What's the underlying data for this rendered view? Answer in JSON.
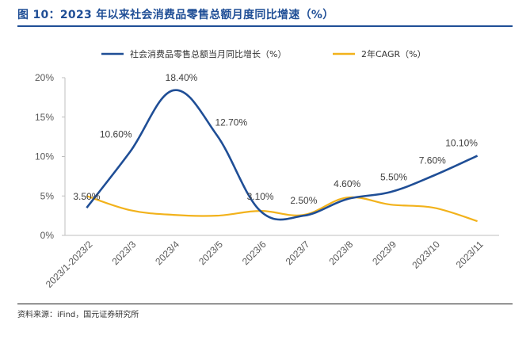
{
  "header": {
    "title": "图 10：2023 年以来社会消费品零售总额月度同比增速（%）"
  },
  "footer": {
    "source": "资料来源：iFind，国元证券研究所"
  },
  "chart_data": {
    "type": "line",
    "categories": [
      "2023/1-2023/2",
      "2023/3",
      "2023/4",
      "2023/5",
      "2023/6",
      "2023/7",
      "2023/8",
      "2023/9",
      "2023/10",
      "2023/11"
    ],
    "ylim": [
      0,
      20
    ],
    "yticks": [
      "0%",
      "5%",
      "10%",
      "15%",
      "20%"
    ],
    "grid": false,
    "legend_position": "top",
    "series": [
      {
        "name": "社会消费品零售总额当月同比增长（%）",
        "color": "#1f4e96",
        "values": [
          3.5,
          10.6,
          18.4,
          12.7,
          3.1,
          2.5,
          4.6,
          5.5,
          7.6,
          10.1
        ],
        "labels": [
          "3.50%",
          "10.60%",
          "18.40%",
          "12.70%",
          "3.10%",
          "2.50%",
          "4.60%",
          "5.50%",
          "7.60%",
          "10.10%"
        ]
      },
      {
        "name": "2年CAGR（%）",
        "color": "#f2b21b",
        "values": [
          5.0,
          3.2,
          2.6,
          2.5,
          3.1,
          2.6,
          4.8,
          3.9,
          3.5,
          1.8
        ]
      }
    ]
  }
}
